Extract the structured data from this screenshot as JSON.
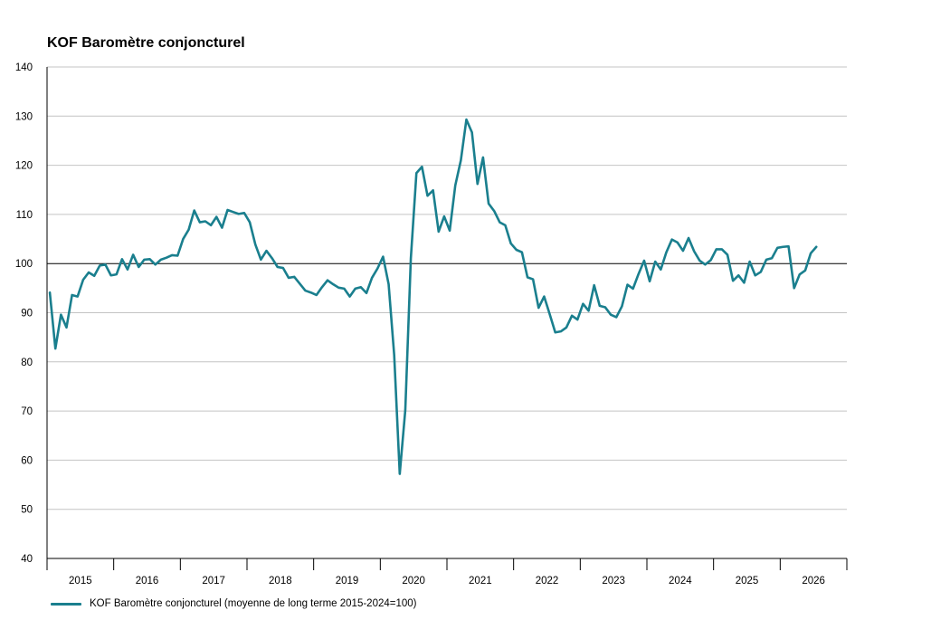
{
  "chart_data": {
    "type": "line",
    "title": "KOF Baromètre conjoncturel",
    "xlabel": "",
    "ylabel": "",
    "ylim": [
      40,
      140
    ],
    "yticks": [
      40,
      50,
      60,
      70,
      80,
      90,
      100,
      110,
      120,
      130,
      140
    ],
    "reference_line": 100,
    "year_labels": [
      "2015",
      "2016",
      "2017",
      "2018",
      "2019",
      "2020",
      "2021",
      "2022",
      "2023",
      "2024",
      "2025",
      "2026"
    ],
    "grid": true,
    "legend_position": "bottom-left",
    "color": "#1a7f8e",
    "series": [
      {
        "name": "KOF Baromètre conjoncturel (moyenne de long terme 2015-2024=100)",
        "start": "2015-01",
        "frequency": "monthly",
        "values": [
          94.1,
          82.7,
          89.6,
          87.0,
          93.6,
          93.3,
          96.7,
          98.2,
          97.5,
          99.6,
          99.8,
          97.6,
          97.8,
          100.9,
          98.8,
          101.8,
          99.3,
          100.8,
          100.9,
          99.8,
          100.8,
          101.2,
          101.7,
          101.6,
          105.0,
          106.9,
          110.8,
          108.4,
          108.6,
          107.8,
          109.5,
          107.3,
          110.9,
          110.5,
          110.1,
          110.3,
          108.4,
          103.9,
          100.8,
          102.6,
          101.1,
          99.3,
          99.1,
          97.1,
          97.3,
          95.9,
          94.5,
          94.1,
          93.6,
          95.2,
          96.6,
          95.8,
          95.1,
          94.9,
          93.3,
          94.9,
          95.2,
          94.0,
          97.1,
          99.0,
          101.4,
          95.8,
          81.4,
          57.2,
          70.2,
          101.1,
          118.4,
          119.7,
          113.8,
          114.9,
          106.5,
          109.6,
          106.7,
          115.9,
          121.0,
          129.3,
          126.7,
          116.2,
          121.6,
          112.2,
          110.7,
          108.4,
          107.8,
          104.1,
          102.8,
          102.3,
          97.2,
          96.8,
          91.0,
          93.3,
          89.7,
          86.0,
          86.2,
          87.0,
          89.4,
          88.6,
          91.8,
          90.4,
          95.6,
          91.4,
          91.1,
          89.6,
          89.1,
          91.3,
          95.7,
          94.9,
          97.9,
          100.6,
          96.4,
          100.4,
          98.8,
          102.3,
          104.9,
          104.3,
          102.6,
          105.2,
          102.5,
          100.6,
          99.8,
          100.7,
          102.9,
          102.9,
          101.8,
          96.5,
          97.6,
          96.1,
          100.4,
          97.6,
          98.3,
          100.8,
          101.1,
          103.2,
          103.4,
          103.5,
          95.0,
          97.8,
          98.6,
          102.1,
          103.4
        ]
      }
    ]
  }
}
